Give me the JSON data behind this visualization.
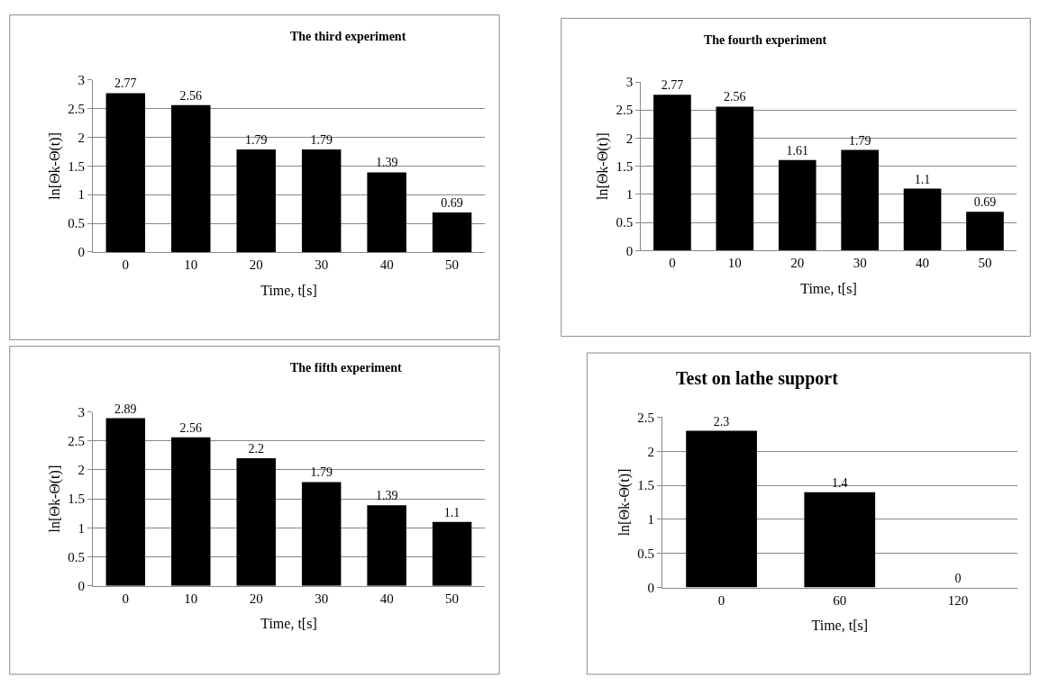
{
  "chart_data": [
    {
      "type": "bar",
      "title": "The third experiment",
      "xlabel": "Time, t[s]",
      "ylabel": "ln[Θk-Θ(t)]",
      "categories": [
        "0",
        "10",
        "20",
        "30",
        "40",
        "50"
      ],
      "values": [
        2.77,
        2.56,
        1.79,
        1.79,
        1.39,
        0.69
      ],
      "color": "#000000",
      "ylim": [
        0,
        3
      ],
      "yticks": [
        0,
        0.5,
        1,
        1.5,
        2,
        2.5,
        3
      ],
      "grid": "y",
      "data_labels": true
    },
    {
      "type": "bar",
      "title": "The fourth experiment",
      "xlabel": "Time, t[s]",
      "ylabel": "ln[Θk-Θ(t)]",
      "categories": [
        "0",
        "10",
        "20",
        "30",
        "40",
        "50"
      ],
      "values": [
        2.77,
        2.56,
        1.61,
        1.79,
        1.1,
        0.69
      ],
      "color": "#000000",
      "ylim": [
        0,
        3
      ],
      "yticks": [
        0,
        0.5,
        1,
        1.5,
        2,
        2.5,
        3
      ],
      "grid": "y",
      "data_labels": true
    },
    {
      "type": "bar",
      "title": "The fifth experiment",
      "xlabel": "Time, t[s]",
      "ylabel": "ln[Θk-Θ(t)]",
      "categories": [
        "0",
        "10",
        "20",
        "30",
        "40",
        "50"
      ],
      "values": [
        2.89,
        2.56,
        2.2,
        1.79,
        1.39,
        1.1
      ],
      "color": "#000000",
      "ylim": [
        0,
        3
      ],
      "yticks": [
        0,
        0.5,
        1,
        1.5,
        2,
        2.5,
        3
      ],
      "grid": "y",
      "data_labels": true
    },
    {
      "type": "bar",
      "title": "Test on lathe support",
      "xlabel": "Time, t[s]",
      "ylabel": "ln[Θk-Θ(t)]",
      "categories": [
        "0",
        "60",
        "120"
      ],
      "values": [
        2.3,
        1.4,
        0
      ],
      "color": "#000000",
      "ylim": [
        0,
        2.5
      ],
      "yticks": [
        0,
        0.5,
        1,
        1.5,
        2,
        2.5
      ],
      "grid": "y",
      "data_labels": true
    }
  ]
}
